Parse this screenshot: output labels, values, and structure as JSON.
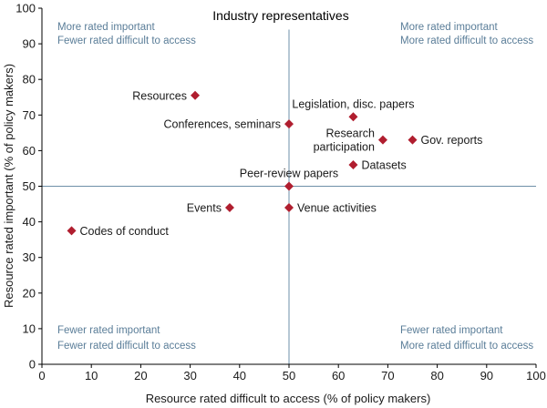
{
  "chart_data": {
    "type": "scatter",
    "title": "Industry representatives",
    "xlabel": "Resource rated difficult to access (% of policy makers)",
    "ylabel": "Resource rated important (% of policy makers)",
    "xlim": [
      0,
      100
    ],
    "ylim": [
      0,
      100
    ],
    "xticks": [
      "0",
      "10",
      "20",
      "30",
      "40",
      "50",
      "60",
      "70",
      "80",
      "90",
      "100"
    ],
    "yticks": [
      "0",
      "10",
      "20",
      "30",
      "40",
      "50",
      "60",
      "70",
      "80",
      "90",
      "100"
    ],
    "reference_lines": {
      "x": 50,
      "y": 50
    },
    "quadrant_labels": {
      "top_left": [
        "More rated important",
        "Fewer rated difficult to access"
      ],
      "top_right": [
        "More rated important",
        "More rated difficult to access"
      ],
      "bottom_left": [
        "Fewer rated important",
        "Fewer rated difficult to access"
      ],
      "bottom_right": [
        "Fewer rated important",
        "More rated difficult to access"
      ]
    },
    "points": [
      {
        "name": "Resources",
        "lines": [
          "Resources"
        ],
        "x": 31,
        "y": 75.5,
        "side": "left"
      },
      {
        "name": "Conferences, seminars",
        "lines": [
          "Conferences, seminars"
        ],
        "x": 50,
        "y": 67.5,
        "side": "left"
      },
      {
        "name": "Legislation, disc. papers",
        "lines": [
          "Legislation, disc. papers"
        ],
        "x": 63,
        "y": 69.5,
        "side": "above"
      },
      {
        "name": "Research participation",
        "lines": [
          "Research",
          "participation"
        ],
        "x": 69,
        "y": 63,
        "side": "left"
      },
      {
        "name": "Gov. reports",
        "lines": [
          "Gov. reports"
        ],
        "x": 75,
        "y": 63,
        "side": "right"
      },
      {
        "name": "Datasets",
        "lines": [
          "Datasets"
        ],
        "x": 63,
        "y": 56,
        "side": "right"
      },
      {
        "name": "Peer-review papers",
        "lines": [
          "Peer-review papers"
        ],
        "x": 50,
        "y": 50,
        "side": "above"
      },
      {
        "name": "Events",
        "lines": [
          "Events"
        ],
        "x": 38,
        "y": 44,
        "side": "left"
      },
      {
        "name": "Venue activities",
        "lines": [
          "Venue activities"
        ],
        "x": 50,
        "y": 44,
        "side": "right"
      },
      {
        "name": "Codes of conduct",
        "lines": [
          "Codes of conduct"
        ],
        "x": 6,
        "y": 37.5,
        "side": "right"
      }
    ],
    "colors": {
      "marker": "#b01e2f",
      "reference_line": "#6e8fa8",
      "quadrant_text": "#5a7d98",
      "axis": "#000000"
    }
  }
}
